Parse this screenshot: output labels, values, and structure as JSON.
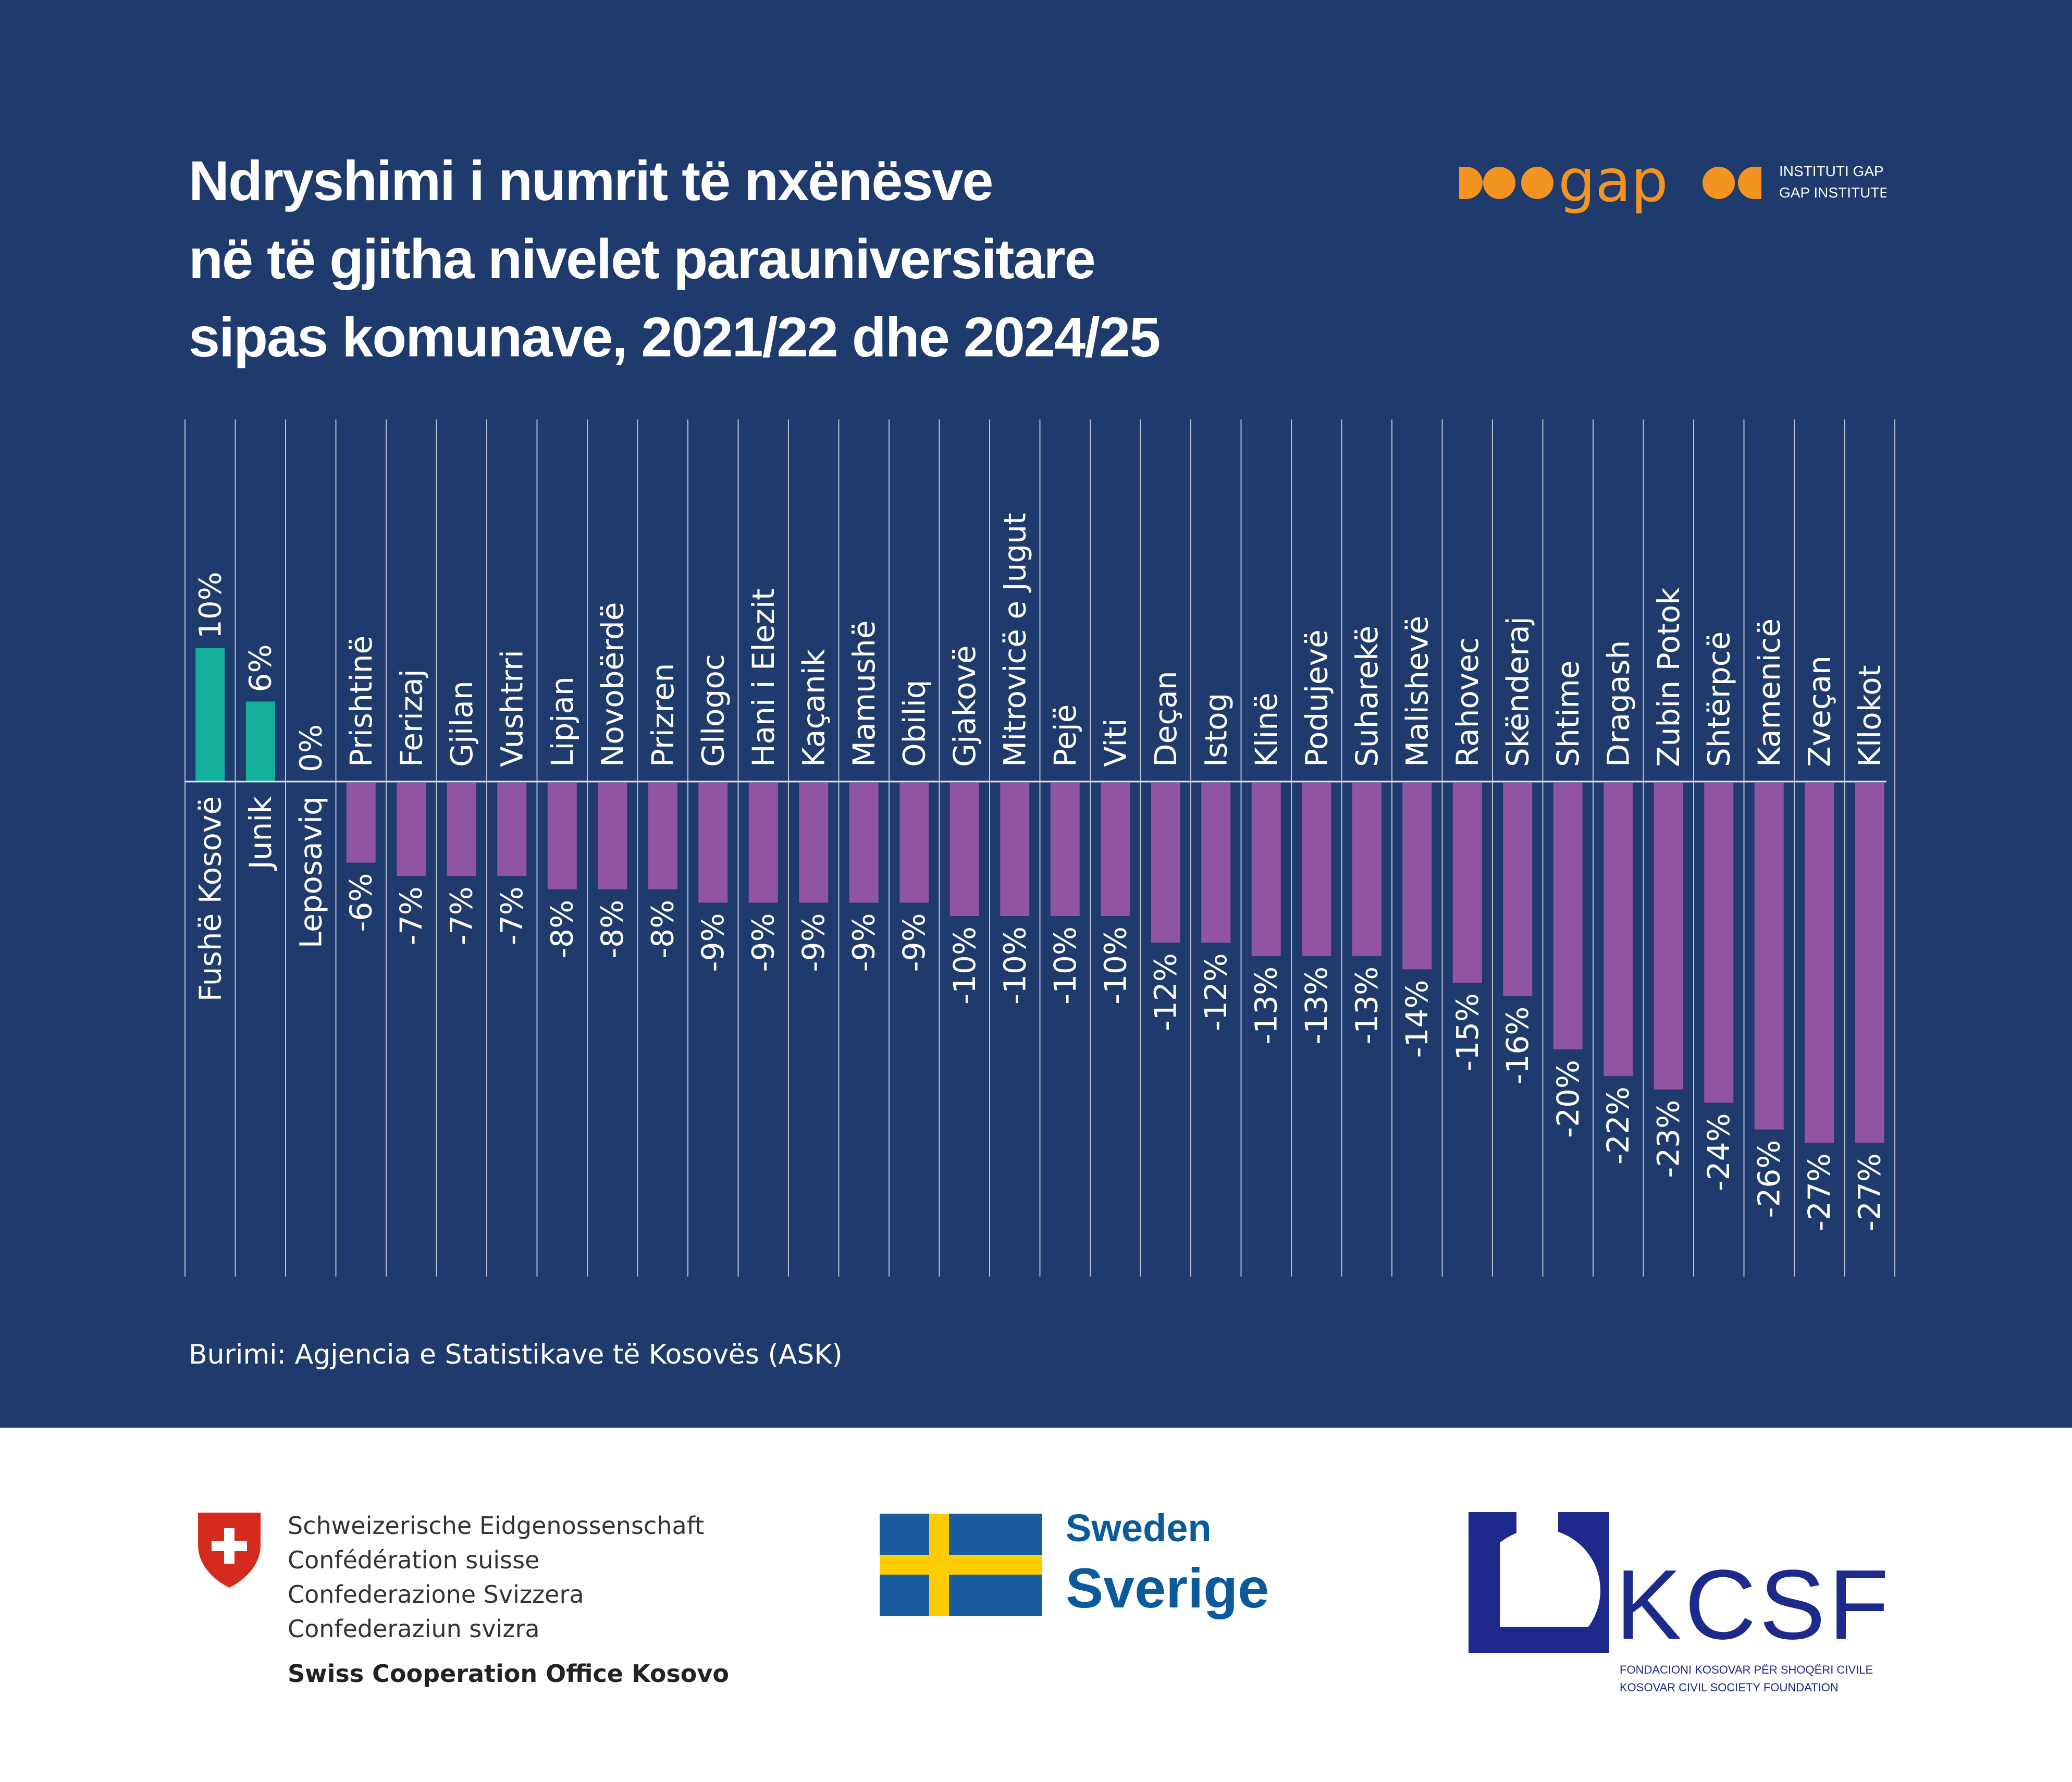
{
  "title_lines": [
    "Ndryshimi i numrit të nxënësve",
    "në të gjitha nivelet parauniversitare",
    "sipas komunave, 2021/22 dhe 2024/25"
  ],
  "brand": {
    "name": "gap",
    "line1": "INSTITUTI GAP",
    "line2": "GAP INSTITUTE",
    "color": "#f39322"
  },
  "source": "Burimi: Agjencia e Statistikave të Kosovës (ASK)",
  "chart_data": {
    "type": "bar",
    "categories": [
      "Fushë Kosovë",
      "Junik",
      "Leposaviq",
      "Prishtinë",
      "Ferizaj",
      "Gjilan",
      "Vushtrri",
      "Lipjan",
      "Novobërdë",
      "Prizren",
      "Gllogoc",
      "Hani i Elezit",
      "Kaçanik",
      "Mamushë",
      "Obiliq",
      "Gjakovë",
      "Mitrovicë e Jugut",
      "Pejë",
      "Viti",
      "Deçan",
      "Istog",
      "Klinë",
      "Podujevë",
      "Suharekë",
      "Malishevë",
      "Rahovec",
      "Skënderaj",
      "Shtime",
      "Dragash",
      "Zubin Potok",
      "Shtërpcë",
      "Kamenicë",
      "Zveçan",
      "Kllokot"
    ],
    "values": [
      10,
      6,
      0,
      -6,
      -7,
      -7,
      -7,
      -8,
      -8,
      -8,
      -9,
      -9,
      -9,
      -9,
      -9,
      -10,
      -10,
      -10,
      -10,
      -12,
      -12,
      -13,
      -13,
      -13,
      -14,
      -15,
      -16,
      -20,
      -22,
      -23,
      -24,
      -26,
      -27,
      -27
    ],
    "value_labels": [
      "10%",
      "6%",
      "0%",
      "-6%",
      "-7%",
      "-7%",
      "-7%",
      "-8%",
      "-8%",
      "-8%",
      "-9%",
      "-9%",
      "-9%",
      "-9%",
      "-9%",
      "-10%",
      "-10%",
      "-10%",
      "-10%",
      "-12%",
      "-12%",
      "-13%",
      "-13%",
      "-13%",
      "-14%",
      "-15%",
      "-16%",
      "-20%",
      "-22%",
      "-23%",
      "-24%",
      "-26%",
      "-27%",
      "-27%"
    ],
    "colors": {
      "positive": "#13b19b",
      "negative": "#9054a1",
      "background": "#1f3a6c",
      "text": "#ffffff"
    },
    "unit": "%",
    "grid": "vertical separators",
    "label_orientation": "rotated vertical"
  },
  "sponsors": {
    "swiss": {
      "lines": [
        "Schweizerische Eidgenossenschaft",
        "Confédération suisse",
        "Confederazione Svizzera",
        "Confederaziun svizra"
      ],
      "office": "Swiss Cooperation Office Kosovo",
      "icon": "swiss-shield-icon",
      "color": "#d52b1e"
    },
    "sweden": {
      "en": "Sweden",
      "sv": "Sverige",
      "icon": "swedish-flag-icon",
      "flag_blue": "#1b5c9e",
      "flag_yellow": "#fecc02"
    },
    "kcsf": {
      "name": "KCSF",
      "sub1": "FONDACIONI KOSOVAR PËR SHOQËRI CIVILE",
      "sub2": "KOSOVAR CIVIL SOCIETY FOUNDATION",
      "color": "#1d2a8c"
    }
  }
}
